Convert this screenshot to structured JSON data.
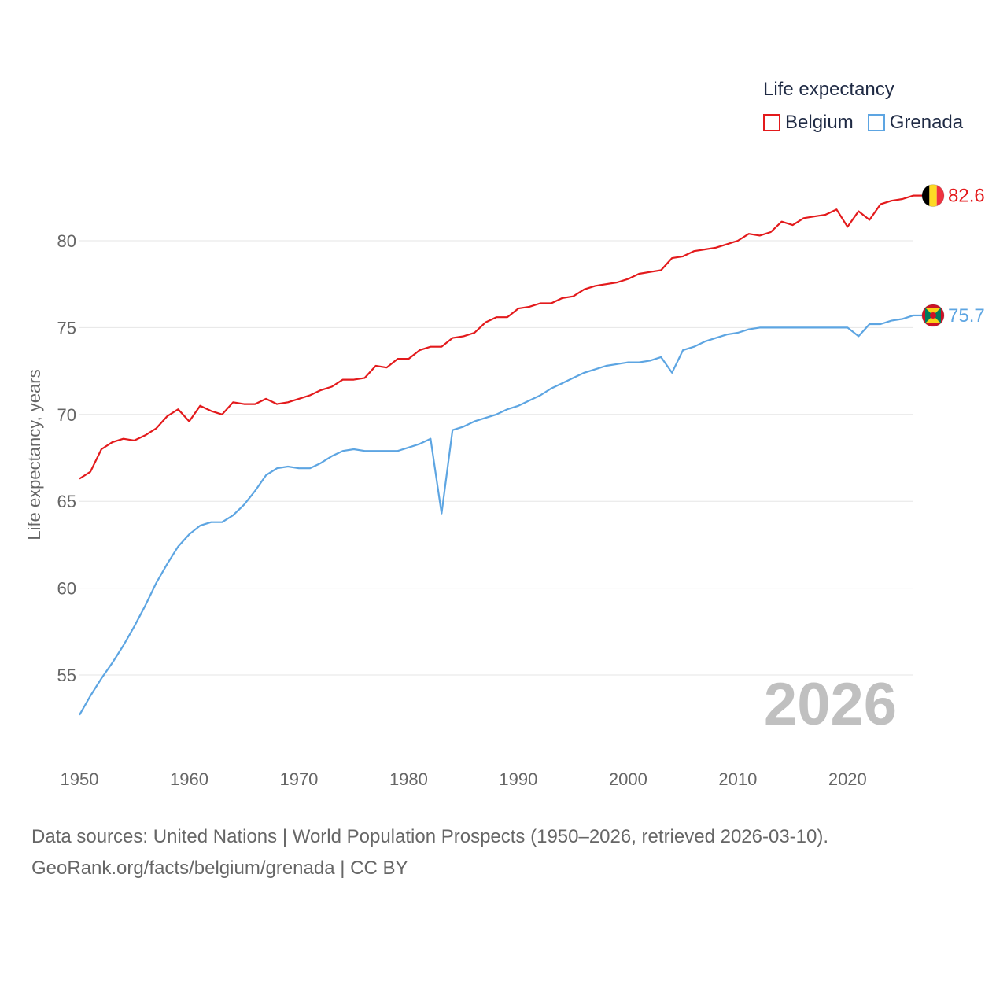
{
  "legend": {
    "title": "Life expectancy",
    "items": [
      {
        "name": "Belgium",
        "color": "#e31a1c"
      },
      {
        "name": "Grenada",
        "color": "#5da5e2"
      }
    ]
  },
  "year_label": "2026",
  "source": {
    "line1": "Data sources: United Nations | World Population Prospects (1950–2026, retrieved 2026-03-10).",
    "line2": "GeoRank.org/facts/belgium/grenada | CC BY"
  },
  "chart_data": {
    "type": "line",
    "title": "Life expectancy",
    "xlabel": "",
    "ylabel": "Life expectancy, years",
    "xlim": [
      1950,
      2026
    ],
    "ylim": [
      52,
      83
    ],
    "x_ticks": [
      1950,
      1960,
      1970,
      1980,
      1990,
      2000,
      2010,
      2020
    ],
    "y_ticks": [
      55,
      60,
      65,
      70,
      75,
      80
    ],
    "grid": true,
    "legend_position": "top-right",
    "x": [
      1950,
      1951,
      1952,
      1953,
      1954,
      1955,
      1956,
      1957,
      1958,
      1959,
      1960,
      1961,
      1962,
      1963,
      1964,
      1965,
      1966,
      1967,
      1968,
      1969,
      1970,
      1971,
      1972,
      1973,
      1974,
      1975,
      1976,
      1977,
      1978,
      1979,
      1980,
      1981,
      1982,
      1983,
      1984,
      1985,
      1986,
      1987,
      1988,
      1989,
      1990,
      1991,
      1992,
      1993,
      1994,
      1995,
      1996,
      1997,
      1998,
      1999,
      2000,
      2001,
      2002,
      2003,
      2004,
      2005,
      2006,
      2007,
      2008,
      2009,
      2010,
      2011,
      2012,
      2013,
      2014,
      2015,
      2016,
      2017,
      2018,
      2019,
      2020,
      2021,
      2022,
      2023,
      2024,
      2025,
      2026
    ],
    "series": [
      {
        "name": "Belgium",
        "color": "#e31a1c",
        "end_label": "82.6",
        "values": [
          66.3,
          66.7,
          68.0,
          68.4,
          68.6,
          68.5,
          68.8,
          69.2,
          69.9,
          70.3,
          69.6,
          70.5,
          70.2,
          70.0,
          70.7,
          70.6,
          70.6,
          70.9,
          70.6,
          70.7,
          70.9,
          71.1,
          71.4,
          71.6,
          72.0,
          72.0,
          72.1,
          72.8,
          72.7,
          73.2,
          73.2,
          73.7,
          73.9,
          73.9,
          74.4,
          74.5,
          74.7,
          75.3,
          75.6,
          75.6,
          76.1,
          76.2,
          76.4,
          76.4,
          76.7,
          76.8,
          77.2,
          77.4,
          77.5,
          77.6,
          77.8,
          78.1,
          78.2,
          78.3,
          79.0,
          79.1,
          79.4,
          79.5,
          79.6,
          79.8,
          80.0,
          80.4,
          80.3,
          80.5,
          81.1,
          80.9,
          81.3,
          81.4,
          81.5,
          81.8,
          80.8,
          81.7,
          81.2,
          82.1,
          82.3,
          82.4,
          82.6
        ]
      },
      {
        "name": "Grenada",
        "color": "#5da5e2",
        "end_label": "75.7",
        "values": [
          52.7,
          53.8,
          54.8,
          55.7,
          56.7,
          57.8,
          59.0,
          60.3,
          61.4,
          62.4,
          63.1,
          63.6,
          63.8,
          63.8,
          64.2,
          64.8,
          65.6,
          66.5,
          66.9,
          67.0,
          66.9,
          66.9,
          67.2,
          67.6,
          67.9,
          68.0,
          67.9,
          67.9,
          67.9,
          67.9,
          68.1,
          68.3,
          68.6,
          64.3,
          69.1,
          69.3,
          69.6,
          69.8,
          70.0,
          70.3,
          70.5,
          70.8,
          71.1,
          71.5,
          71.8,
          72.1,
          72.4,
          72.6,
          72.8,
          72.9,
          73.0,
          73.0,
          73.1,
          73.3,
          72.4,
          73.7,
          73.9,
          74.2,
          74.4,
          74.6,
          74.7,
          74.9,
          75.0,
          75.0,
          75.0,
          75.0,
          75.0,
          75.0,
          75.0,
          75.0,
          75.0,
          74.5,
          75.2,
          75.2,
          75.4,
          75.5,
          75.7
        ]
      }
    ]
  }
}
